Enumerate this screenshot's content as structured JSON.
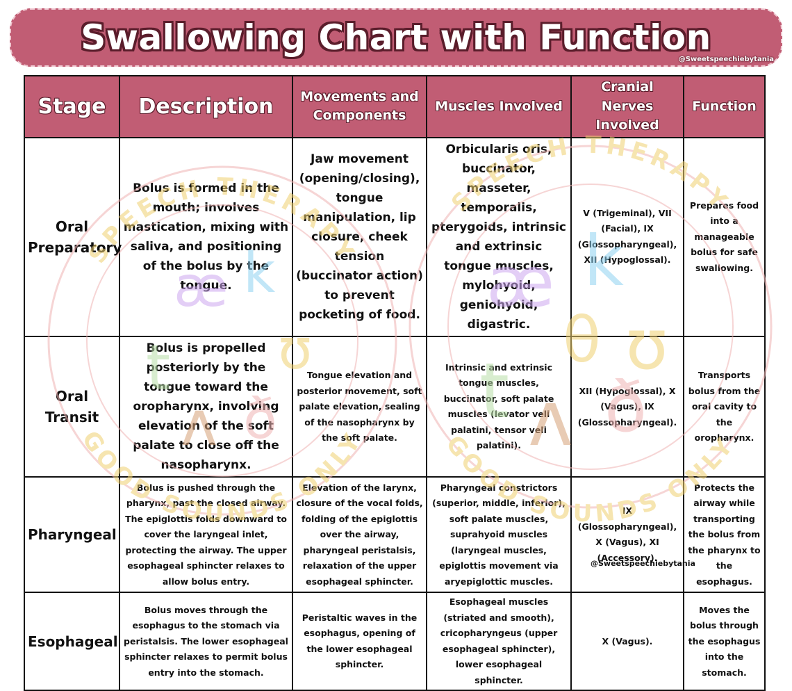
{
  "title": "Swallowing Chart with Function",
  "handle_top": "@Sweetspeechiebytania",
  "handle_bottom": "@Sweetspeechiebytania",
  "headers": [
    "Stage",
    "Description",
    "Movements and Components",
    "Muscles Involved",
    "Cranial Nerves Involved",
    "Function"
  ],
  "rows": [
    {
      "stage": "Oral Preparatory",
      "description": "Bolus is formed in the mouth; involves mastication, mixing with saliva, and positioning of the bolus by the tongue.",
      "movements": "Jaw movement (opening/closing), tongue manipulation, lip closure, cheek tension (buccinator action) to prevent pocketing of food.",
      "muscles": "Orbicularis oris, buccinator, masseter, temporalis, pterygoids, intrinsic and extrinsic tongue muscles, mylohyoid, geniohyoid, digastric.",
      "nerves": "V (Trigeminal), VII (Facial), IX (Glossopharyngeal), XII (Hypoglossal).",
      "function": "Prepares food into a manageable bolus for safe swallowing."
    },
    {
      "stage": "Oral Transit",
      "description": "Bolus is propelled posteriorly by the tongue toward the oropharynx, involving elevation of the soft palate to close off the nasopharynx.",
      "movements": "Tongue elevation and posterior movement, soft palate elevation, sealing of the nasopharynx by the soft palate.",
      "muscles": "Intrinsic and extrinsic tongue muscles, buccinator, soft palate muscles (levator veli palatini, tensor veli palatini).",
      "nerves": "XII (Hypoglossal), X (Vagus), IX (Glossopharyngeal).",
      "function": "Transports bolus from the oral cavity to the oropharynx."
    },
    {
      "stage": "Pharyngeal",
      "description": "Bolus is pushed through the pharynx, past the closed airway. The epiglottis folds downward to cover the laryngeal inlet, protecting the airway. The upper esophageal sphincter relaxes to allow bolus entry.",
      "movements": "Elevation of the larynx, closure of the vocal folds, folding of the epiglottis over the airway, pharyngeal peristalsis, relaxation of the upper esophageal sphincter.",
      "muscles": "Pharyngeal constrictors (superior, middle, inferior), soft palate muscles, suprahyoid muscles (laryngeal muscles, epiglottis movement via aryepiglottic muscles.",
      "nerves": "IX (Glossopharyngeal), X (Vagus), XI (Accessory).",
      "function": "Protects the airway while transporting the bolus from the pharynx to the esophagus."
    },
    {
      "stage": "Esophageal",
      "description": "Bolus moves through the esophagus to the stomach via peristalsis. The lower esophageal sphincter relaxes to permit bolus entry into the stomach.",
      "movements": "Peristaltic waves in the esophagus, opening of the lower esophageal sphincter.",
      "muscles": "Esophageal muscles (striated and smooth), cricopharyngeus (upper esophageal sphincter), lower esophageal sphincter.",
      "nerves": "X (Vagus).",
      "function": "Moves the bolus through the esophagus into the stomach."
    }
  ],
  "watermark": {
    "arc_text_top": "SPEECH THERAPY",
    "arc_text_bottom": "GOOD SOUNDS ONLY",
    "symbols": [
      "æ",
      "k",
      "ʊ",
      "θ",
      "t",
      "ʌ",
      "ð"
    ],
    "colors": {
      "gold": "#f0d070",
      "purple": "#cda7ef",
      "blue": "#8fd3f2",
      "green": "#b9dfa9",
      "brown": "#d7a277",
      "pink": "#efb3b3"
    }
  },
  "colors": {
    "header_bg": "#c15d74",
    "outline": "#5a1d2b"
  }
}
